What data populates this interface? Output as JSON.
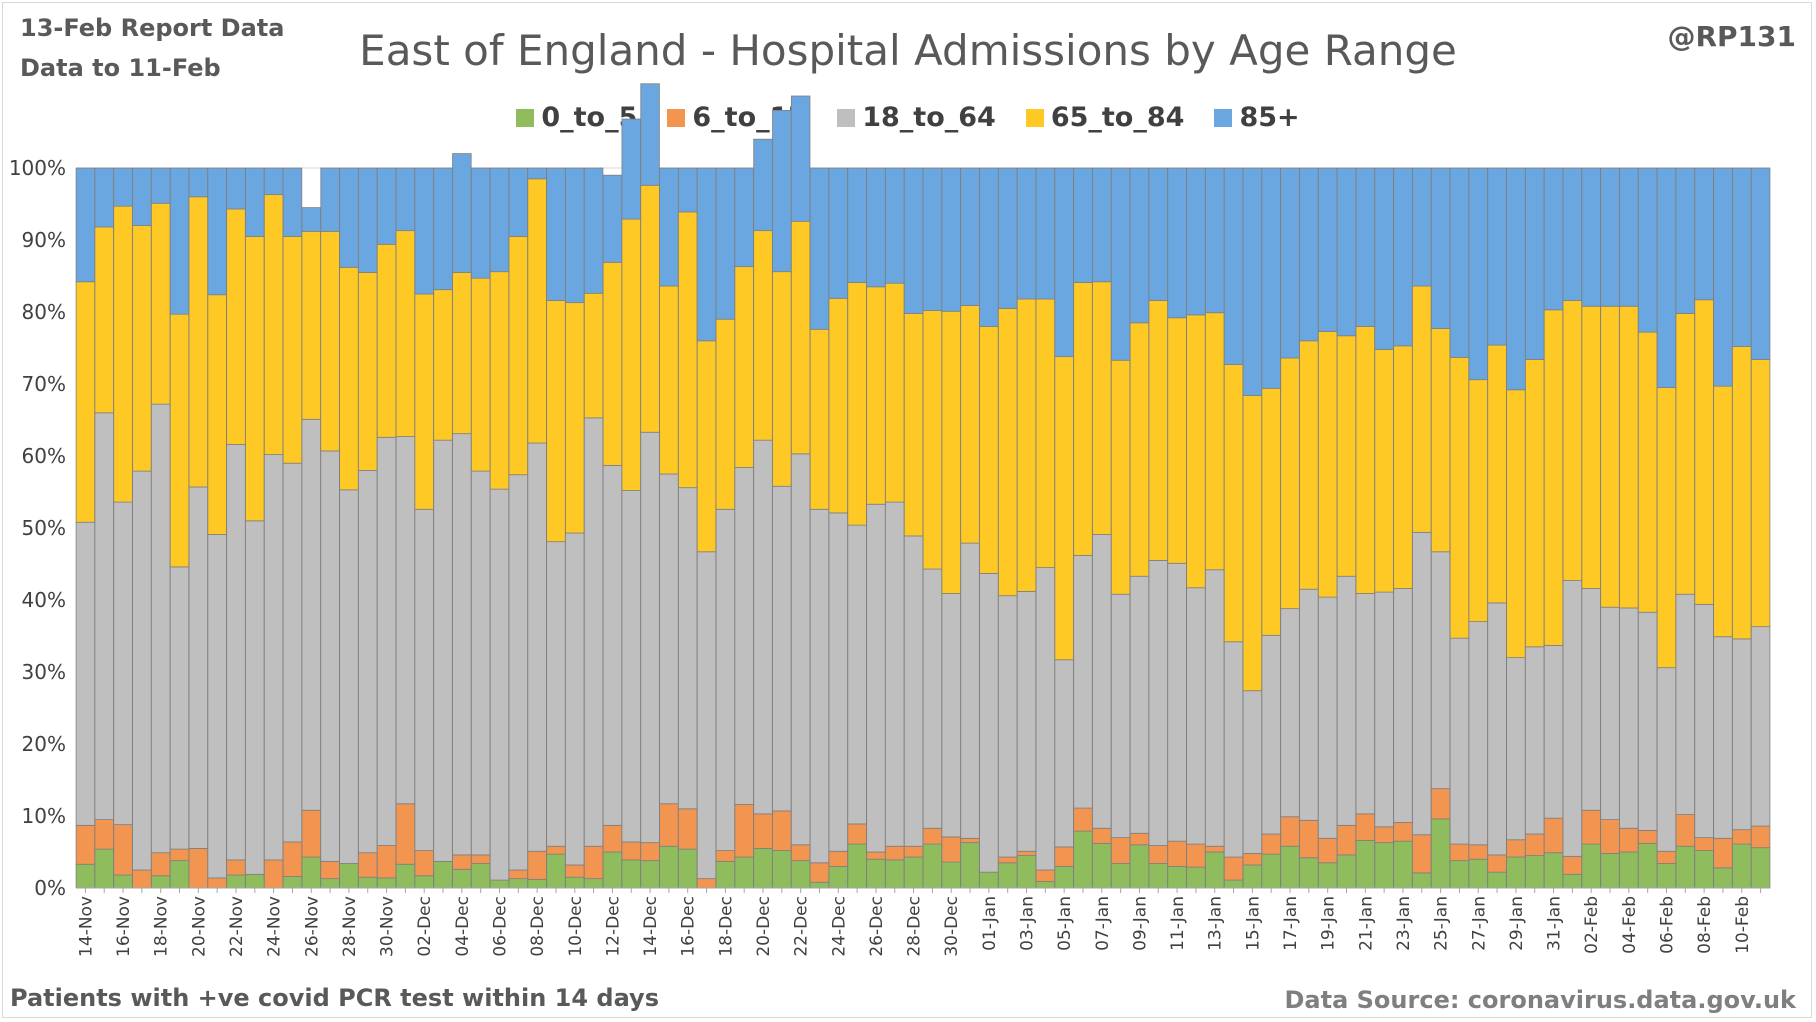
{
  "header": {
    "report_date": "13-Feb Report Data",
    "data_to": "Data to 11-Feb",
    "handle": "@RP131"
  },
  "footer": {
    "left": "Patients with  +ve covid PCR test within 14 days",
    "right": "Data Source: coronavirus.data.gov.uk"
  },
  "colors": {
    "0_to_5": "#8fbc5c",
    "6_to_17": "#f29550",
    "18_to_64": "#bfbfbf",
    "65_to_84": "#ffc925",
    "85+": "#6aa7e0"
  },
  "chart_data": {
    "type": "bar",
    "stacked": true,
    "normalized": true,
    "title": "East of England - Hospital Admissions by Age Range",
    "xlabel": "",
    "ylabel": "",
    "ylim": [
      0,
      100
    ],
    "y_ticks": [
      "0%",
      "10%",
      "20%",
      "30%",
      "40%",
      "50%",
      "60%",
      "70%",
      "80%",
      "90%",
      "100%"
    ],
    "legend_position": "top",
    "grid": true,
    "categories": [
      "14-Nov",
      "15-Nov",
      "16-Nov",
      "17-Nov",
      "18-Nov",
      "19-Nov",
      "20-Nov",
      "21-Nov",
      "22-Nov",
      "23-Nov",
      "24-Nov",
      "25-Nov",
      "26-Nov",
      "27-Nov",
      "28-Nov",
      "29-Nov",
      "30-Nov",
      "01-Dec",
      "02-Dec",
      "03-Dec",
      "04-Dec",
      "05-Dec",
      "06-Dec",
      "07-Dec",
      "08-Dec",
      "09-Dec",
      "10-Dec",
      "11-Dec",
      "12-Dec",
      "13-Dec",
      "14-Dec",
      "15-Dec",
      "16-Dec",
      "17-Dec",
      "18-Dec",
      "19-Dec",
      "20-Dec",
      "21-Dec",
      "22-Dec",
      "23-Dec",
      "24-Dec",
      "25-Dec",
      "26-Dec",
      "27-Dec",
      "28-Dec",
      "29-Dec",
      "30-Dec",
      "31-Dec",
      "01-Jan",
      "02-Jan",
      "03-Jan",
      "04-Jan",
      "05-Jan",
      "06-Jan",
      "07-Jan",
      "08-Jan",
      "09-Jan",
      "10-Jan",
      "11-Jan",
      "12-Jan",
      "13-Jan",
      "14-Jan",
      "15-Jan",
      "16-Jan",
      "17-Jan",
      "18-Jan",
      "19-Jan",
      "20-Jan",
      "21-Jan",
      "22-Jan",
      "23-Jan",
      "24-Jan",
      "25-Jan",
      "26-Jan",
      "27-Jan",
      "28-Jan",
      "29-Jan",
      "30-Jan",
      "31-Jan",
      "01-Feb",
      "02-Feb",
      "03-Feb",
      "04-Feb",
      "05-Feb",
      "06-Feb",
      "07-Feb",
      "08-Feb",
      "09-Feb",
      "10-Feb",
      "11-Feb"
    ],
    "x_tick_labels": [
      "14-Nov",
      "16-Nov",
      "18-Nov",
      "20-Nov",
      "22-Nov",
      "24-Nov",
      "26-Nov",
      "28-Nov",
      "30-Nov",
      "02-Dec",
      "04-Dec",
      "06-Dec",
      "08-Dec",
      "10-Dec",
      "12-Dec",
      "14-Dec",
      "16-Dec",
      "18-Dec",
      "20-Dec",
      "22-Dec",
      "24-Dec",
      "26-Dec",
      "28-Dec",
      "30-Dec",
      "01-Jan",
      "03-Jan",
      "05-Jan",
      "07-Jan",
      "09-Jan",
      "11-Jan",
      "13-Jan",
      "15-Jan",
      "17-Jan",
      "19-Jan",
      "21-Jan",
      "23-Jan",
      "25-Jan",
      "27-Jan",
      "29-Jan",
      "31-Jan",
      "02-Feb",
      "04-Feb",
      "06-Feb",
      "08-Feb",
      "10-Feb"
    ],
    "series": [
      {
        "name": "0_to_5",
        "values": [
          3.3,
          5.4,
          1.8,
          0.0,
          1.7,
          3.8,
          0.0,
          0.0,
          1.8,
          1.9,
          0.0,
          1.6,
          4.3,
          1.3,
          3.4,
          1.5,
          1.4,
          3.3,
          1.7,
          3.7,
          2.6,
          3.4,
          1.1,
          1.3,
          1.2,
          4.7,
          1.5,
          1.3,
          5.0,
          3.9,
          3.8,
          5.8,
          5.4,
          0.0,
          3.7,
          4.3,
          5.5,
          5.2,
          3.8,
          0.8,
          3.0,
          6.1,
          4.0,
          3.9,
          4.3,
          6.1,
          3.6,
          6.3,
          2.2,
          3.5,
          4.5,
          0.9,
          3.0,
          7.9,
          6.2,
          3.4,
          6.0,
          3.4,
          3.0,
          2.9,
          5.0,
          1.1,
          3.2,
          4.7,
          5.8,
          4.2,
          3.5,
          4.6,
          6.6,
          6.3,
          6.5,
          2.1,
          9.6,
          3.8,
          4.0,
          2.2,
          4.3,
          4.5,
          4.9,
          1.9,
          6.1,
          4.8,
          5.0,
          6.2,
          3.4,
          5.8,
          5.2,
          2.8,
          6.1,
          5.6
        ]
      },
      {
        "name": "6_to_17",
        "values": [
          5.4,
          4.1,
          7.0,
          2.5,
          3.2,
          1.6,
          5.5,
          1.4,
          2.1,
          0.0,
          3.9,
          4.8,
          6.5,
          2.4,
          0.0,
          3.4,
          4.5,
          8.4,
          3.5,
          0.0,
          2.0,
          1.2,
          0.0,
          1.2,
          3.9,
          1.1,
          1.7,
          4.5,
          3.7,
          2.5,
          2.5,
          5.9,
          5.6,
          1.3,
          1.5,
          7.3,
          4.8,
          5.5,
          2.2,
          2.7,
          2.1,
          2.8,
          1.0,
          1.9,
          1.5,
          2.2,
          3.5,
          0.6,
          0.0,
          0.8,
          0.6,
          1.6,
          2.7,
          3.2,
          2.1,
          3.6,
          1.6,
          2.5,
          3.5,
          3.2,
          0.8,
          3.2,
          1.6,
          2.8,
          4.1,
          5.2,
          3.4,
          4.1,
          3.7,
          2.2,
          2.6,
          5.3,
          4.2,
          2.3,
          2.0,
          2.4,
          2.4,
          3.0,
          4.8,
          2.5,
          4.7,
          4.7,
          3.3,
          1.8,
          1.7,
          4.4,
          1.8,
          4.1,
          2.0,
          3.0
        ]
      },
      {
        "name": "18_to_64",
        "values": [
          42.1,
          56.5,
          44.8,
          55.4,
          62.3,
          39.2,
          50.2,
          47.7,
          57.7,
          49.1,
          56.3,
          52.6,
          54.3,
          57.0,
          51.9,
          53.1,
          56.7,
          51.0,
          47.4,
          58.5,
          58.5,
          53.3,
          54.3,
          54.9,
          56.7,
          42.3,
          46.1,
          59.5,
          50.0,
          48.8,
          57.0,
          45.8,
          44.6,
          45.4,
          47.4,
          46.8,
          51.9,
          45.1,
          54.3,
          49.1,
          47.0,
          41.5,
          48.3,
          47.8,
          43.1,
          36.0,
          33.8,
          41.0,
          41.5,
          36.3,
          36.1,
          42.0,
          26.0,
          35.1,
          40.8,
          33.8,
          35.7,
          39.6,
          38.6,
          35.6,
          38.4,
          29.9,
          22.6,
          27.6,
          28.9,
          32.1,
          33.5,
          34.6,
          30.6,
          32.6,
          32.5,
          42.0,
          32.9,
          28.6,
          31.0,
          35.0,
          25.3,
          26.0,
          24.0,
          38.3,
          30.8,
          29.5,
          30.6,
          30.3,
          25.5,
          30.6,
          32.4,
          28.0,
          26.5,
          27.7
        ]
      },
      {
        "name": "65_to_84",
        "values": [
          33.4,
          25.8,
          41.1,
          34.1,
          27.9,
          35.1,
          40.3,
          33.3,
          32.7,
          39.5,
          36.1,
          31.5,
          26.1,
          30.5,
          30.9,
          27.5,
          26.8,
          28.6,
          29.9,
          20.9,
          22.4,
          26.8,
          30.2,
          33.1,
          36.7,
          33.5,
          32.0,
          17.3,
          28.2,
          37.7,
          34.3,
          26.1,
          38.3,
          29.3,
          26.4,
          27.9,
          29.1,
          29.8,
          32.3,
          25.0,
          29.8,
          33.7,
          30.2,
          30.4,
          30.9,
          35.9,
          39.2,
          33.0,
          34.3,
          39.9,
          40.6,
          37.3,
          42.1,
          37.9,
          35.1,
          32.5,
          35.2,
          36.1,
          34.1,
          37.9,
          35.7,
          38.5,
          41.0,
          34.3,
          34.8,
          34.5,
          36.9,
          33.4,
          37.1,
          33.7,
          33.7,
          34.2,
          31.0,
          39.0,
          33.6,
          35.8,
          37.2,
          39.9,
          46.6,
          38.9,
          39.2,
          41.8,
          41.9,
          38.9,
          38.9,
          39.0,
          42.3,
          34.8,
          40.6,
          37.1
        ]
      },
      {
        "name": "85+",
        "values": [
          15.8,
          8.2,
          5.3,
          8.0,
          4.9,
          20.3,
          4.0,
          17.6,
          5.7,
          9.5,
          3.7,
          9.5,
          3.3,
          8.8,
          13.8,
          14.5,
          10.6,
          8.7,
          17.5,
          16.9,
          16.5,
          15.3,
          14.4,
          9.5,
          1.5,
          18.4,
          18.7,
          17.4,
          12.1,
          13.9,
          14.1,
          16.4,
          6.1,
          24.0,
          21.0,
          13.7,
          12.7,
          22.4,
          17.4,
          22.4,
          18.1,
          15.9,
          16.5,
          16.0,
          20.2,
          19.8,
          19.9,
          19.1,
          22.0,
          19.5,
          18.2,
          18.2,
          26.2,
          15.9,
          15.8,
          26.7,
          21.5,
          18.4,
          20.8,
          20.4,
          20.1,
          27.3,
          31.6,
          30.6,
          26.4,
          24.0,
          22.7,
          23.3,
          22.0,
          25.2,
          24.7,
          16.4,
          22.3,
          26.3,
          29.4,
          24.6,
          30.8,
          26.6,
          19.7,
          18.4,
          19.2,
          19.2,
          19.2,
          22.8,
          30.5,
          20.2,
          18.3,
          30.3,
          24.8,
          26.6
        ]
      }
    ]
  }
}
